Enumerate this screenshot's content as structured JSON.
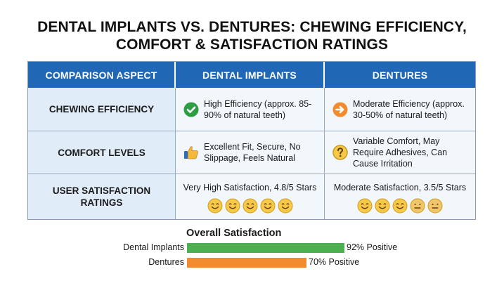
{
  "title_line1": "DENTAL IMPLANTS VS. DENTURES: CHEWING EFFICIENCY,",
  "title_line2": "COMFORT & SATISFACTION RATINGS",
  "columns": [
    "COMPARISON ASPECT",
    "DENTAL IMPLANTS",
    "DENTURES"
  ],
  "rows": [
    {
      "aspect": "CHEWING EFFICIENCY",
      "implants": {
        "icon": "check-circle-icon",
        "text": "High Efficiency (approx. 85-90% of natural teeth)"
      },
      "dentures": {
        "icon": "arrow-right-circle-icon",
        "text": "Moderate Efficiency (approx. 30-50% of natural teeth)"
      }
    },
    {
      "aspect": "COMFORT LEVELS",
      "implants": {
        "icon": "thumbs-up-icon",
        "text": "Excellent Fit, Secure, No Slippage, Feels Natural"
      },
      "dentures": {
        "icon": "question-circle-icon",
        "text": "Variable Comfort, May Require Adhesives, Can Cause Irritation"
      }
    },
    {
      "aspect": "USER SATISFACTION RATINGS",
      "implants": {
        "text": "Very High Satisfaction, 4.8/5 Stars",
        "faces": [
          "smile",
          "smile",
          "smile",
          "smile",
          "smile"
        ]
      },
      "dentures": {
        "text": "Moderate Satisfaction, 3.5/5 Stars",
        "faces": [
          "smile",
          "smile",
          "smile",
          "neutral",
          "neutral"
        ]
      }
    }
  ],
  "overall": {
    "title": "Overall Satisfaction",
    "bars": [
      {
        "label": "Dental Implants",
        "value": 92,
        "value_text": "92% Positive",
        "color": "#4caf50"
      },
      {
        "label": "Dentures",
        "value": 70,
        "value_text": "70% Positive",
        "color": "#f28a2e"
      }
    ]
  },
  "colors": {
    "header": "#2067b5",
    "aspect_bg": "#e0edf8",
    "cell_bg": "#f2f7fc",
    "check": "#2e9e44",
    "arrow": "#f28a2e",
    "face": "#f5c842"
  }
}
